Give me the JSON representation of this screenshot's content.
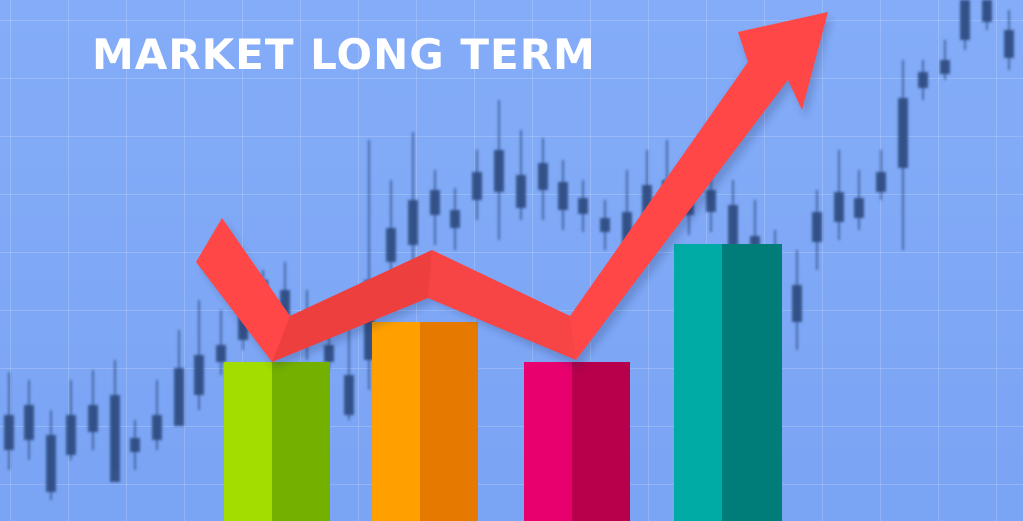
{
  "headline": "MARKET LONG TERM",
  "colors": {
    "background": "#7ea7f6",
    "candle": "#2f4a80",
    "arrow": "#ff4848",
    "bar_green": "#8fd000",
    "bar_orange": "#ff9a00",
    "bar_magenta": "#e8006e",
    "bar_teal": "#00a8a0"
  },
  "icons": [
    "trend-arrow-icon",
    "candlestick-chart",
    "bar-chart"
  ]
}
